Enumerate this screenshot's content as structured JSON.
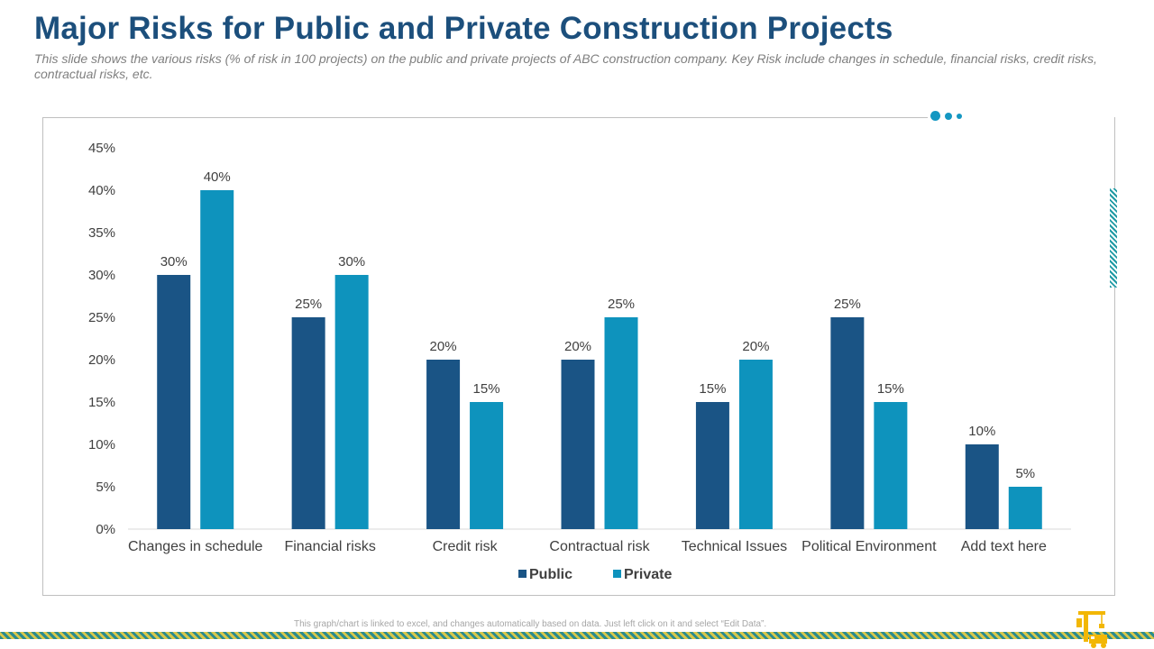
{
  "slide": {
    "title": "Major Risks for Public and Private Construction Projects",
    "subtitle": "This slide shows the various risks (% of risk in 100 projects) on the public and private projects of ABC construction company. Key Risk include changes in schedule, financial risks, credit risks, contractual risks, etc.",
    "footnote": "This graph/chart is linked to excel,  and changes automatically based on data. Just left click on it and select “Edit Data”."
  },
  "colors": {
    "title": "#1c4f7c",
    "public": "#1a5485",
    "private": "#0e93bd",
    "accent": "#1497c2"
  },
  "chart_data": {
    "type": "bar",
    "categories": [
      "Changes in schedule",
      "Financial risks",
      "Credit risk",
      "Contractual risk",
      "Technical Issues",
      "Political Environment",
      "Add text here"
    ],
    "series": [
      {
        "name": "Public",
        "values": [
          30,
          25,
          20,
          20,
          15,
          25,
          10
        ]
      },
      {
        "name": "Private",
        "values": [
          40,
          30,
          15,
          25,
          20,
          15,
          5
        ]
      }
    ],
    "ylim": [
      0,
      45
    ],
    "yticks": [
      0,
      5,
      10,
      15,
      20,
      25,
      30,
      35,
      40,
      45
    ],
    "value_suffix": "%",
    "grid": false,
    "legend_position": "bottom-center",
    "title": "",
    "xlabel": "",
    "ylabel": ""
  }
}
